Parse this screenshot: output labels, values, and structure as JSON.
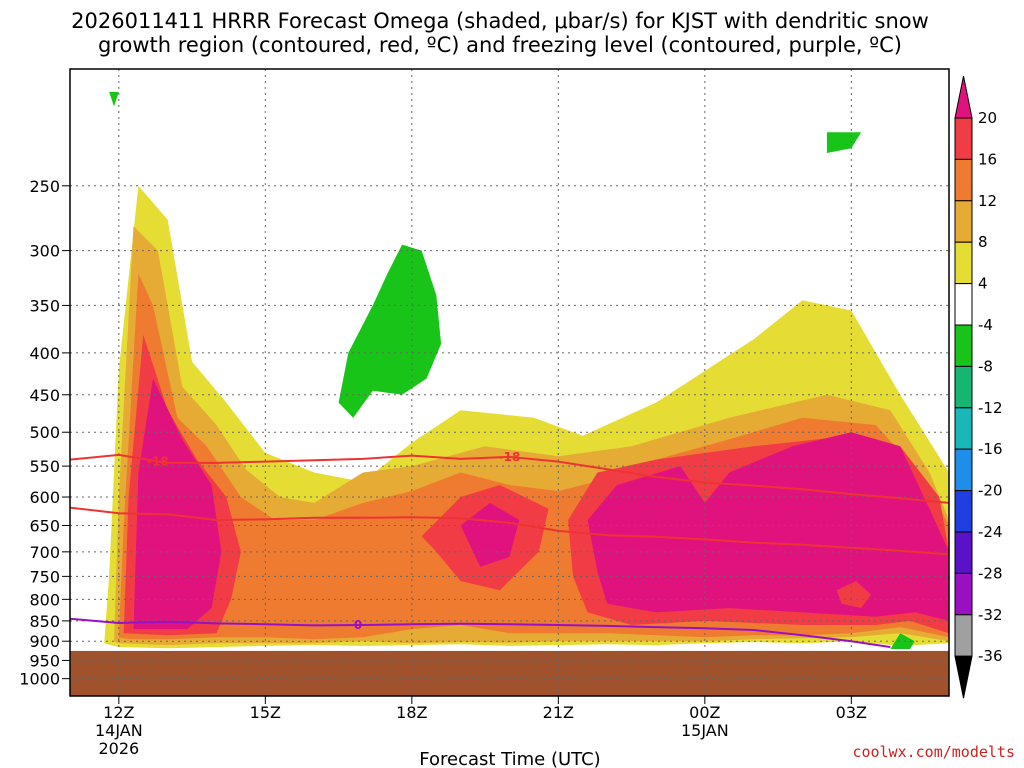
{
  "chart_data": {
    "type": "heatmap",
    "title_line1": "2026011411 HRRR Forecast Omega (shaded, μbar/s) for KJST with dendritic snow",
    "title_line2": "growth region (contoured, red, ºC) and freezing level (contoured, purple, ºC)",
    "xlabel": "Forecast Time (UTC)",
    "credit": "coolwx.com/modelts",
    "x_forecast_hours_range": [
      -1,
      17
    ],
    "x_ticks": [
      {
        "hour": 0,
        "label": "12Z",
        "sub1": "14JAN",
        "sub2": "2026"
      },
      {
        "hour": 3,
        "label": "15Z",
        "sub1": "",
        "sub2": ""
      },
      {
        "hour": 6,
        "label": "18Z",
        "sub1": "",
        "sub2": ""
      },
      {
        "hour": 9,
        "label": "21Z",
        "sub1": "",
        "sub2": ""
      },
      {
        "hour": 12,
        "label": "00Z",
        "sub1": "15JAN",
        "sub2": ""
      },
      {
        "hour": 15,
        "label": "03Z",
        "sub1": "",
        "sub2": ""
      }
    ],
    "y_pressure_range_hpa": [
      1050,
      180
    ],
    "y_ticks": [
      250,
      300,
      350,
      400,
      450,
      500,
      550,
      600,
      650,
      700,
      750,
      800,
      850,
      900,
      950,
      1000
    ],
    "colorbar": {
      "units": "μbar/s",
      "levels": [
        20,
        16,
        12,
        8,
        4,
        -4,
        -8,
        -12,
        -16,
        -20,
        -24,
        -28,
        -32,
        -36
      ],
      "colors": [
        "#e0137e",
        "#f23c45",
        "#ef7b30",
        "#e6ab34",
        "#e6dd34",
        "#ffffff",
        "#18c418",
        "#17b572",
        "#18b8b8",
        "#1e8fe8",
        "#1f3fe0",
        "#5a12c8",
        "#9b0fc4",
        "#a0a0a0",
        "#000000"
      ]
    },
    "ground_color": "#a0522d",
    "surface_pressure_hpa": 925,
    "omega_regions": [
      {
        "level": 4,
        "points": [
          [
            -0.3,
            905
          ],
          [
            -0.2,
            750
          ],
          [
            0,
            420
          ],
          [
            0.4,
            250
          ],
          [
            1.0,
            275
          ],
          [
            1.5,
            410
          ],
          [
            2.2,
            460
          ],
          [
            3.0,
            530
          ],
          [
            4.0,
            560
          ],
          [
            5.0,
            575
          ],
          [
            6.0,
            515
          ],
          [
            7.0,
            470
          ],
          [
            8.5,
            480
          ],
          [
            9.5,
            505
          ],
          [
            11.0,
            460
          ],
          [
            13.0,
            385
          ],
          [
            14.0,
            345
          ],
          [
            15.0,
            355
          ],
          [
            16.0,
            450
          ],
          [
            17.0,
            560
          ],
          [
            17.0,
            905
          ],
          [
            16.0,
            912
          ],
          [
            15.0,
            900
          ],
          [
            14.0,
            905
          ],
          [
            13.0,
            902
          ],
          [
            12.0,
            905
          ],
          [
            11.0,
            910
          ],
          [
            10.0,
            908
          ],
          [
            9.0,
            910
          ],
          [
            8.0,
            912
          ],
          [
            7.0,
            908
          ],
          [
            6.0,
            910
          ],
          [
            5.0,
            912
          ],
          [
            4.0,
            910
          ],
          [
            3.0,
            912
          ],
          [
            2.0,
            915
          ],
          [
            1.0,
            918
          ],
          [
            0,
            915
          ]
        ]
      },
      {
        "level": 8,
        "points": [
          [
            -0.1,
            900
          ],
          [
            0,
            600
          ],
          [
            0.3,
            280
          ],
          [
            0.8,
            300
          ],
          [
            1.3,
            440
          ],
          [
            2.0,
            490
          ],
          [
            2.6,
            555
          ],
          [
            3.3,
            600
          ],
          [
            4.0,
            610
          ],
          [
            5.0,
            560
          ],
          [
            6.0,
            550
          ],
          [
            7.5,
            520
          ],
          [
            9.0,
            535
          ],
          [
            10.5,
            520
          ],
          [
            12.5,
            480
          ],
          [
            14.5,
            450
          ],
          [
            15.8,
            470
          ],
          [
            16.6,
            560
          ],
          [
            17.0,
            640
          ],
          [
            17.0,
            900
          ],
          [
            16.0,
            880
          ],
          [
            15.0,
            890
          ],
          [
            13.0,
            895
          ],
          [
            12.0,
            900
          ],
          [
            11.0,
            900
          ],
          [
            10.0,
            900
          ],
          [
            9.0,
            900
          ],
          [
            8.0,
            904
          ],
          [
            7.0,
            902
          ],
          [
            6.0,
            905
          ],
          [
            5.0,
            900
          ],
          [
            4.0,
            905
          ],
          [
            3.0,
            905
          ],
          [
            2.0,
            905
          ],
          [
            1.0,
            910
          ],
          [
            0,
            905
          ]
        ]
      },
      {
        "level": 12,
        "points": [
          [
            0.0,
            890
          ],
          [
            0.1,
            650
          ],
          [
            0.4,
            320
          ],
          [
            0.7,
            350
          ],
          [
            1.2,
            480
          ],
          [
            1.8,
            520
          ],
          [
            2.5,
            600
          ],
          [
            3.2,
            640
          ],
          [
            4.0,
            640
          ],
          [
            5.0,
            610
          ],
          [
            6.0,
            590
          ],
          [
            7.0,
            560
          ],
          [
            8.0,
            580
          ],
          [
            9.0,
            590
          ],
          [
            10.0,
            570
          ],
          [
            11.0,
            540
          ],
          [
            12.5,
            510
          ],
          [
            14.0,
            480
          ],
          [
            15.5,
            490
          ],
          [
            16.5,
            570
          ],
          [
            17.0,
            650
          ],
          [
            17.0,
            890
          ],
          [
            16.0,
            865
          ],
          [
            15.0,
            880
          ],
          [
            14.0,
            885
          ],
          [
            13.0,
            885
          ],
          [
            12.0,
            890
          ],
          [
            11.0,
            885
          ],
          [
            10.0,
            880
          ],
          [
            9.0,
            880
          ],
          [
            8.0,
            880
          ],
          [
            7.0,
            860
          ],
          [
            6.0,
            870
          ],
          [
            5.0,
            890
          ],
          [
            4.0,
            895
          ],
          [
            3.0,
            890
          ],
          [
            2.0,
            890
          ],
          [
            1.0,
            895
          ],
          [
            0.2,
            895
          ]
        ]
      },
      {
        "level": 16,
        "points": [
          [
            0.1,
            880
          ],
          [
            0.2,
            600
          ],
          [
            0.5,
            380
          ],
          [
            1.0,
            470
          ],
          [
            1.6,
            540
          ],
          [
            2.2,
            600
          ],
          [
            2.5,
            700
          ],
          [
            2.3,
            800
          ],
          [
            2.0,
            880
          ],
          [
            1.0,
            885
          ]
        ]
      },
      {
        "level": 16,
        "points": [
          [
            6.2,
            670
          ],
          [
            7.0,
            600
          ],
          [
            7.8,
            580
          ],
          [
            8.8,
            620
          ],
          [
            8.6,
            700
          ],
          [
            7.8,
            780
          ],
          [
            7.0,
            760
          ],
          [
            6.5,
            700
          ]
        ]
      },
      {
        "level": 16,
        "points": [
          [
            9.2,
            640
          ],
          [
            9.8,
            560
          ],
          [
            11.0,
            540
          ],
          [
            13.0,
            520
          ],
          [
            15.0,
            505
          ],
          [
            16.0,
            520
          ],
          [
            16.8,
            600
          ],
          [
            17.0,
            700
          ],
          [
            17.0,
            880
          ],
          [
            16.2,
            850
          ],
          [
            15.5,
            860
          ],
          [
            14.0,
            860
          ],
          [
            12.0,
            850
          ],
          [
            10.5,
            860
          ],
          [
            9.6,
            830
          ],
          [
            9.3,
            750
          ]
        ]
      },
      {
        "level": 20,
        "points": [
          [
            0.3,
            870
          ],
          [
            0.4,
            560
          ],
          [
            0.7,
            430
          ],
          [
            1.3,
            510
          ],
          [
            1.9,
            580
          ],
          [
            2.1,
            700
          ],
          [
            1.9,
            820
          ],
          [
            1.4,
            870
          ]
        ]
      },
      {
        "level": 20,
        "points": [
          [
            7.0,
            650
          ],
          [
            7.6,
            610
          ],
          [
            8.2,
            640
          ],
          [
            8.0,
            710
          ],
          [
            7.4,
            730
          ]
        ]
      },
      {
        "level": 20,
        "points": [
          [
            9.6,
            640
          ],
          [
            10.2,
            580
          ],
          [
            11.5,
            550
          ],
          [
            12.0,
            610
          ],
          [
            12.5,
            560
          ],
          [
            13.8,
            520
          ],
          [
            15.0,
            500
          ],
          [
            16.0,
            520
          ],
          [
            16.6,
            620
          ],
          [
            17.0,
            700
          ],
          [
            17.0,
            850
          ],
          [
            16.3,
            830
          ],
          [
            15.5,
            840
          ],
          [
            14.0,
            830
          ],
          [
            12.5,
            820
          ],
          [
            11.0,
            830
          ],
          [
            10.0,
            810
          ],
          [
            9.8,
            740
          ]
        ]
      },
      {
        "level": 16,
        "points": [
          [
            14.7,
            780
          ],
          [
            15.1,
            760
          ],
          [
            15.4,
            790
          ],
          [
            15.2,
            820
          ],
          [
            14.8,
            810
          ]
        ]
      },
      {
        "level": -4,
        "points": [
          [
            4.5,
            460
          ],
          [
            4.7,
            400
          ],
          [
            5.2,
            350
          ],
          [
            5.5,
            320
          ],
          [
            5.8,
            295
          ],
          [
            6.2,
            300
          ],
          [
            6.5,
            340
          ],
          [
            6.6,
            390
          ],
          [
            6.3,
            430
          ],
          [
            5.8,
            450
          ],
          [
            5.2,
            445
          ],
          [
            4.8,
            480
          ]
        ]
      },
      {
        "level": -4,
        "points": [
          [
            14.5,
            215
          ],
          [
            15.2,
            215
          ],
          [
            15.0,
            225
          ],
          [
            14.5,
            228
          ]
        ]
      },
      {
        "level": -4,
        "points": [
          [
            -0.2,
            192
          ],
          [
            0.0,
            192
          ],
          [
            -0.1,
            200
          ]
        ]
      },
      {
        "level": -4,
        "points": [
          [
            15.8,
            920
          ],
          [
            16.0,
            880
          ],
          [
            16.3,
            900
          ],
          [
            16.2,
            920
          ]
        ]
      }
    ],
    "contours": [
      {
        "name": "dgz-minus18",
        "color": "#ee3333",
        "label": "-18",
        "label_at_hours": [
          0.8,
          8.0
        ],
        "points": [
          [
            -1,
            540
          ],
          [
            0,
            533
          ],
          [
            1,
            545
          ],
          [
            2,
            545
          ],
          [
            3,
            543
          ],
          [
            4,
            541
          ],
          [
            5,
            539
          ],
          [
            6,
            534
          ],
          [
            7,
            539
          ],
          [
            8,
            536
          ],
          [
            9,
            543
          ],
          [
            10,
            555
          ],
          [
            11,
            567
          ],
          [
            12,
            576
          ],
          [
            13,
            581
          ],
          [
            14,
            587
          ],
          [
            15,
            595
          ],
          [
            16,
            602
          ],
          [
            17,
            610
          ]
        ]
      },
      {
        "name": "dgz-minus12",
        "color": "#ee3333",
        "label": "",
        "label_at_hours": [],
        "points": [
          [
            -1,
            618
          ],
          [
            0,
            628
          ],
          [
            1,
            630
          ],
          [
            2,
            640
          ],
          [
            3,
            639
          ],
          [
            4,
            636
          ],
          [
            5,
            636
          ],
          [
            6,
            635
          ],
          [
            7,
            637
          ],
          [
            8,
            645
          ],
          [
            9,
            660
          ],
          [
            10,
            668
          ],
          [
            11,
            671
          ],
          [
            12,
            676
          ],
          [
            13,
            682
          ],
          [
            14,
            686
          ],
          [
            15,
            692
          ],
          [
            16,
            698
          ],
          [
            17,
            705
          ]
        ]
      },
      {
        "name": "freezing-level",
        "color": "#9b0fc4",
        "label": "0",
        "label_at_hours": [
          4.9
        ],
        "points": [
          [
            -1,
            845
          ],
          [
            0,
            855
          ],
          [
            1,
            852
          ],
          [
            2,
            856
          ],
          [
            3,
            858
          ],
          [
            4,
            861
          ],
          [
            5,
            860
          ],
          [
            6,
            858
          ],
          [
            7,
            857
          ],
          [
            8,
            858
          ],
          [
            9,
            860
          ],
          [
            10,
            862
          ],
          [
            11,
            865
          ],
          [
            12,
            868
          ],
          [
            13,
            872
          ],
          [
            14,
            885
          ],
          [
            15,
            900
          ],
          [
            15.8,
            915
          ]
        ]
      }
    ]
  }
}
